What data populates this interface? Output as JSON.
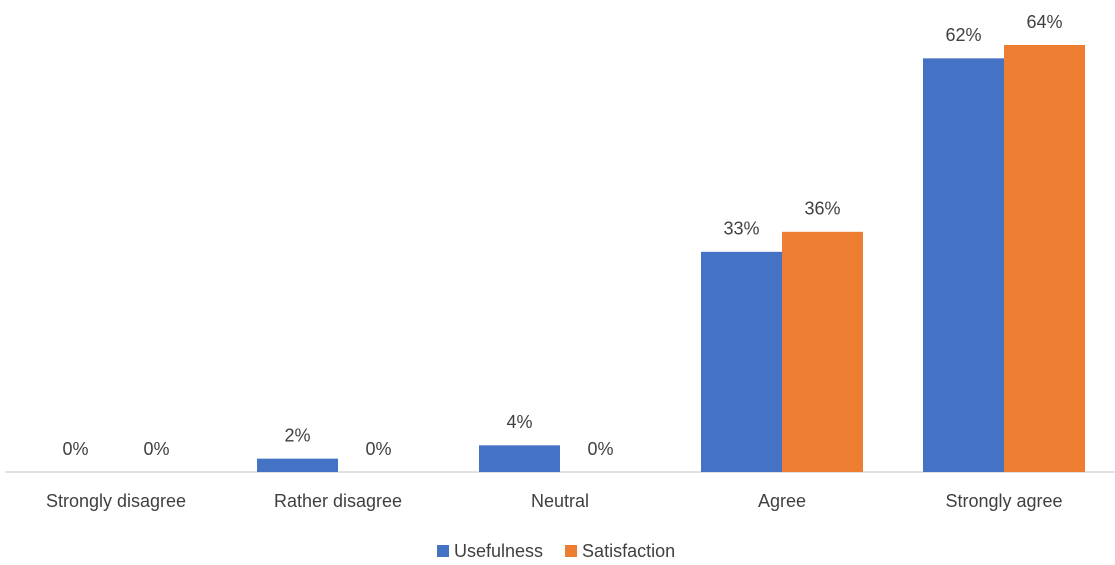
{
  "chart_data": {
    "type": "bar",
    "categories": [
      "Strongly disagree",
      "Rather disagree",
      "Neutral",
      "Agree",
      "Strongly agree"
    ],
    "series": [
      {
        "name": "Usefulness",
        "color": "#4472c4",
        "values": [
          0,
          2,
          4,
          33,
          62
        ],
        "value_labels": [
          "0%",
          "2%",
          "4%",
          "33%",
          "62%"
        ]
      },
      {
        "name": "Satisfaction",
        "color": "#ed7d31",
        "values": [
          0,
          0,
          0,
          36,
          64
        ],
        "value_labels": [
          "0%",
          "0%",
          "0%",
          "36%",
          "64%"
        ]
      }
    ],
    "legend": "bottom"
  }
}
